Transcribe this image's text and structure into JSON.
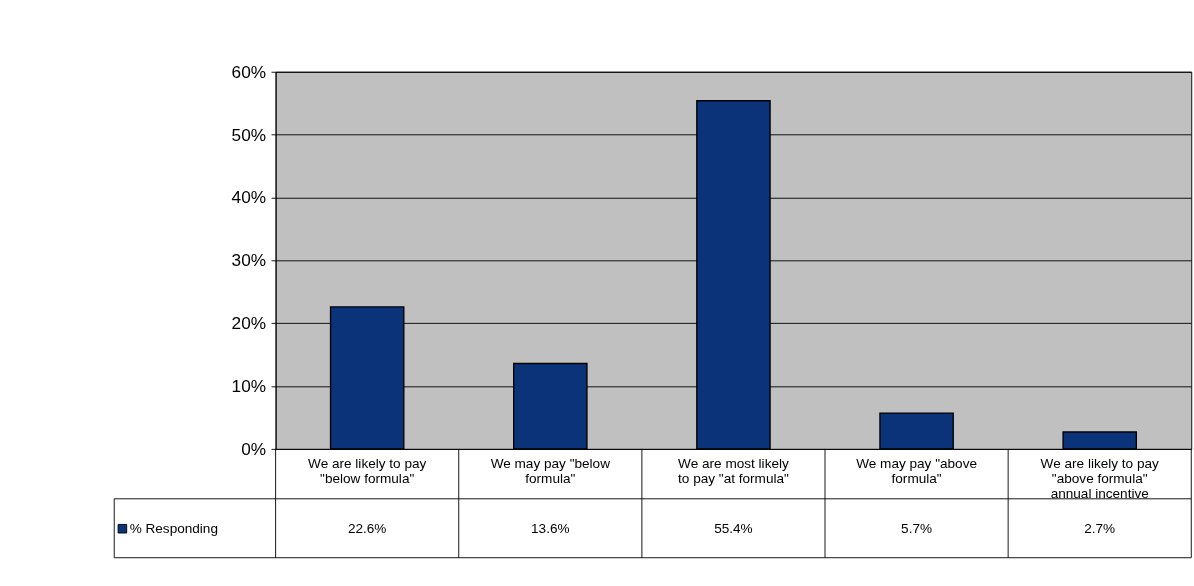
{
  "chart_data": {
    "type": "bar",
    "categories": [
      "We are likely to pay \"below formula\"",
      "We may pay \"below formula\"",
      "We are most likely to pay \"at formula\"",
      "We may pay \"above formula\"",
      "We are likely to pay \"above formula\" annual incentive"
    ],
    "series": [
      {
        "name": "% Responding",
        "color": "#0b3379",
        "values": [
          22.6,
          13.6,
          55.4,
          5.7,
          2.7
        ],
        "value_labels": [
          "22.6%",
          "13.6%",
          "55.4%",
          "5.7%",
          "2.7%"
        ]
      }
    ],
    "ylim": [
      0,
      60
    ],
    "yticks": [
      {
        "value": 0,
        "label": "0%"
      },
      {
        "value": 10,
        "label": "10%"
      },
      {
        "value": 20,
        "label": "20%"
      },
      {
        "value": 30,
        "label": "30%"
      },
      {
        "value": 40,
        "label": "40%"
      },
      {
        "value": 50,
        "label": "50%"
      },
      {
        "value": 60,
        "label": "60%"
      }
    ],
    "grid": "y",
    "legend": "bottom left"
  }
}
